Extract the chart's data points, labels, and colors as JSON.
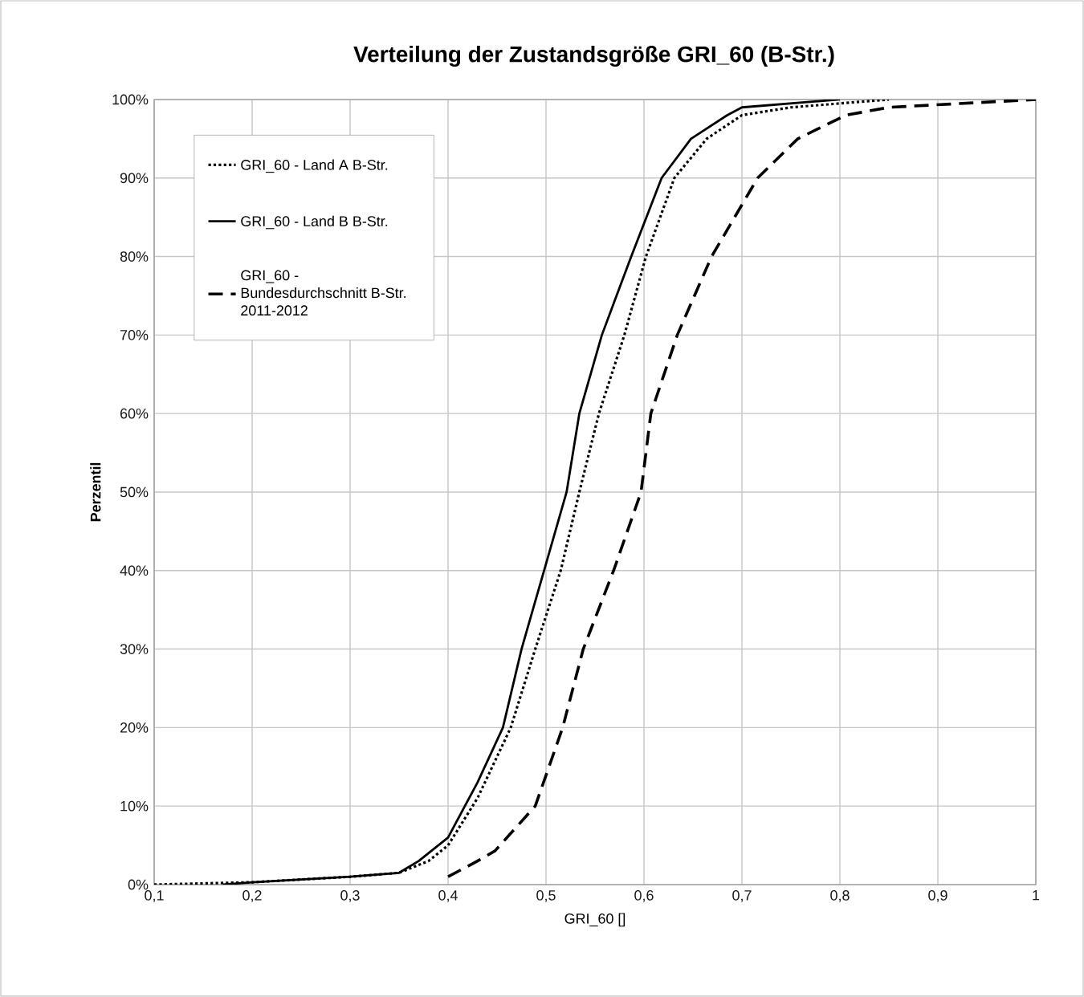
{
  "chart_data": {
    "type": "line",
    "title": "Verteilung der Zustandsgröße GRI_60 (B-Str.)",
    "xlabel": "GRI_60 []",
    "ylabel": "Perzentil",
    "xlim": [
      0.1,
      1
    ],
    "ylim": [
      0,
      100
    ],
    "xticks": [
      {
        "value": 0.1,
        "label": "0,1"
      },
      {
        "value": 0.2,
        "label": "0,2"
      },
      {
        "value": 0.3,
        "label": "0,3"
      },
      {
        "value": 0.4,
        "label": "0,4"
      },
      {
        "value": 0.5,
        "label": "0,5"
      },
      {
        "value": 0.6,
        "label": "0,6"
      },
      {
        "value": 0.7,
        "label": "0,7"
      },
      {
        "value": 0.8,
        "label": "0,8"
      },
      {
        "value": 0.9,
        "label": "0,9"
      },
      {
        "value": 1,
        "label": "1"
      }
    ],
    "yticks": [
      {
        "value": 0,
        "label": "0%"
      },
      {
        "value": 10,
        "label": "10%"
      },
      {
        "value": 20,
        "label": "20%"
      },
      {
        "value": 30,
        "label": "30%"
      },
      {
        "value": 40,
        "label": "40%"
      },
      {
        "value": 50,
        "label": "50%"
      },
      {
        "value": 60,
        "label": "60%"
      },
      {
        "value": 70,
        "label": "70%"
      },
      {
        "value": 80,
        "label": "80%"
      },
      {
        "value": 90,
        "label": "90%"
      },
      {
        "value": 100,
        "label": "100%"
      }
    ],
    "grid": true,
    "legend": "top left",
    "marker": "none",
    "series": [
      {
        "name": "GRI_60 - Land A B-Str.",
        "color": "#000000",
        "line_style": "dotted",
        "x": [
          0.1,
          0.2,
          0.3,
          0.35,
          0.38,
          0.4,
          0.43,
          0.464,
          0.489,
          0.515,
          0.534,
          0.554,
          0.58,
          0.602,
          0.631,
          0.664,
          0.7,
          0.75,
          0.85
        ],
        "values": [
          0,
          0.3,
          1,
          1.5,
          3,
          5,
          11,
          20,
          30,
          40,
          50,
          60,
          70,
          80,
          90,
          95,
          98,
          99,
          100
        ]
      },
      {
        "name": "GRI_60 - Land B B-Str.",
        "color": "#000000",
        "line_style": "solid",
        "x": [
          0.17,
          0.2,
          0.3,
          0.35,
          0.37,
          0.4,
          0.43,
          0.456,
          0.475,
          0.498,
          0.521,
          0.534,
          0.557,
          0.587,
          0.618,
          0.648,
          0.685,
          0.7,
          0.8
        ],
        "values": [
          0,
          0.3,
          1,
          1.5,
          3,
          6,
          13,
          20,
          30,
          40,
          50,
          60,
          70,
          80,
          90,
          95,
          98,
          99,
          100
        ]
      },
      {
        "name": "GRI_60 - Bundesdurchschnitt B-Str. 2011-2012",
        "color": "#000000",
        "line_style": "dashed",
        "x": [
          0.4,
          0.43,
          0.448,
          0.489,
          0.517,
          0.538,
          0.569,
          0.597,
          0.607,
          0.634,
          0.669,
          0.716,
          0.757,
          0.806,
          0.85,
          1
        ],
        "values": [
          1,
          3,
          4.3,
          10,
          20,
          30,
          40,
          50,
          60,
          70,
          80,
          90,
          95,
          98,
          99,
          100
        ]
      }
    ]
  }
}
